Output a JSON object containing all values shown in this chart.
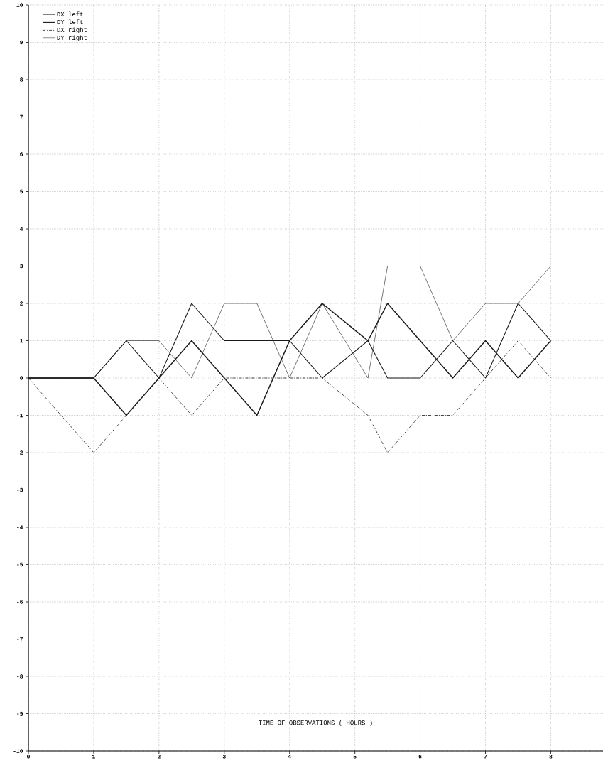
{
  "chart_data": {
    "type": "line",
    "xlabel": "TIME OF OBSERVATIONS ( HOURS )",
    "x": [
      0,
      1,
      1.5,
      2,
      2.5,
      3,
      3.5,
      4,
      4.5,
      5.2,
      5.5,
      6,
      6.5,
      7,
      7.5,
      8
    ],
    "series": [
      {
        "name": "DX left",
        "color": "#1a1a1a",
        "line_style": "solid",
        "values": [
          0,
          0,
          1,
          1,
          0,
          2,
          2,
          0,
          2,
          0,
          3,
          3,
          1,
          2,
          2,
          3
        ]
      },
      {
        "name": "DY left",
        "color": "#1a1a1a",
        "line_style": "solid",
        "values": [
          0,
          0,
          1,
          0,
          2,
          1,
          1,
          1,
          0,
          1,
          0,
          0,
          1,
          0,
          2,
          1
        ]
      },
      {
        "name": "DX right",
        "color": "#1a1a1a",
        "line_style": "dashdot",
        "values": [
          0,
          -2,
          -1,
          0,
          -1,
          0,
          0,
          0,
          0,
          -1,
          -2,
          -1,
          -1,
          0,
          1,
          0
        ]
      },
      {
        "name": "DY right",
        "color": "#1a1a1a",
        "line_style": "solid",
        "values": [
          0,
          0,
          -1,
          0,
          1,
          0,
          -1,
          1,
          2,
          1,
          2,
          1,
          0,
          1,
          0,
          1
        ]
      }
    ],
    "xlim": [
      0,
      8.8
    ],
    "xticks": [
      0,
      1,
      2,
      3,
      4,
      5,
      6,
      7,
      8
    ],
    "ylim": [
      -10,
      10
    ],
    "yticks": [
      -10,
      -9,
      -8,
      -7,
      -6,
      -5,
      -4,
      -3,
      -2,
      -1,
      0,
      1,
      2,
      3,
      4,
      5,
      6,
      7,
      8,
      9,
      10
    ],
    "grid": true,
    "legend": "top left",
    "marker": "none"
  }
}
